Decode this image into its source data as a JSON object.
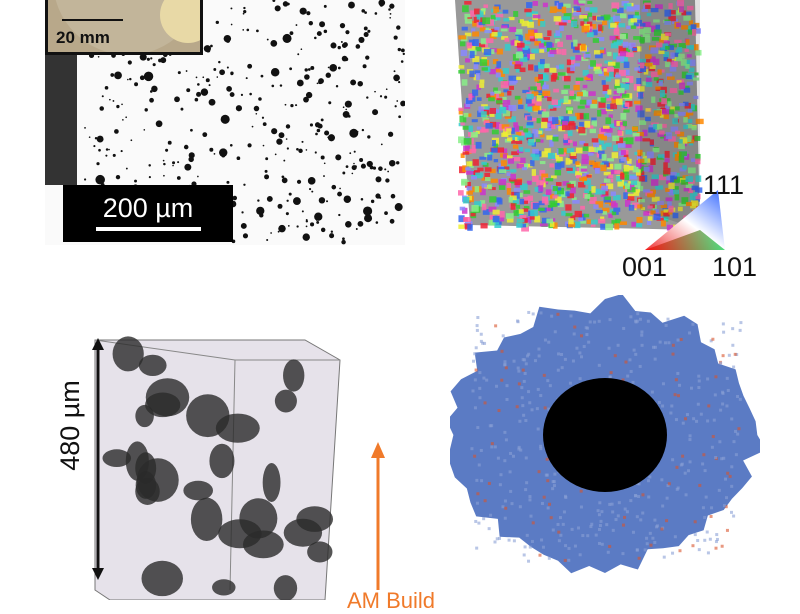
{
  "panel_a": {
    "inset_scale": "20 mm",
    "scale_bar": "200 µm"
  },
  "panel_b": {
    "ipf_labels": {
      "top": "111",
      "left": "001",
      "right": "101"
    }
  },
  "panel_c": {
    "height_label": "480 µm",
    "build_label": "AM Build"
  },
  "colors": {
    "build_arrow": "#f07a2a",
    "cross_section_base": "#5b7bc4",
    "hotspot": "#d9542b"
  }
}
